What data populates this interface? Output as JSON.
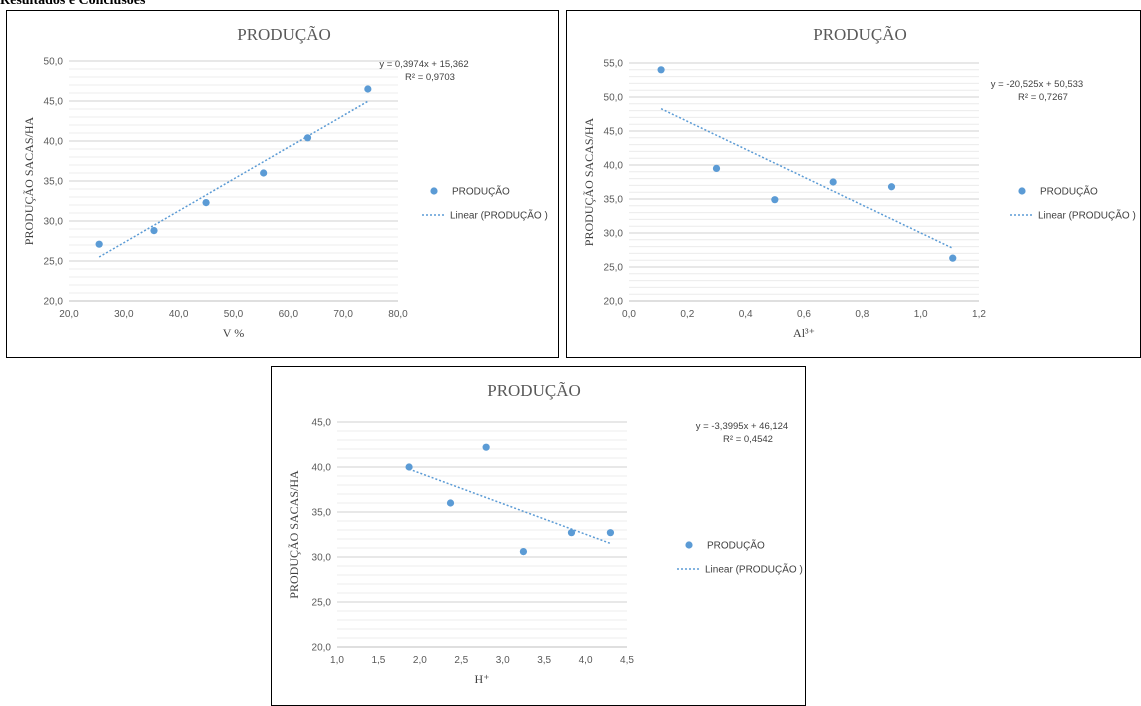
{
  "page": {
    "heading": "Resultados e Conclusões"
  },
  "chart_data": [
    {
      "type": "scatter",
      "title": "PRODUÇÃO",
      "xlabel": "V %",
      "ylabel": "PRODUÇÃO SACAS/HA",
      "xlim": [
        20,
        80
      ],
      "ylim": [
        20,
        50
      ],
      "xticks": [
        "20,0",
        "30,0",
        "40,0",
        "50,0",
        "60,0",
        "70,0",
        "80,0"
      ],
      "yticks": [
        "20,0",
        "25,0",
        "30,0",
        "35,0",
        "40,0",
        "45,0",
        "50,0"
      ],
      "series": [
        {
          "name": "PRODUÇÃO",
          "color": "#5b9bd5",
          "points": [
            [
              25.5,
              27.1
            ],
            [
              35.5,
              28.8
            ],
            [
              45,
              32.3
            ],
            [
              55.5,
              36.0
            ],
            [
              63.5,
              40.4
            ],
            [
              74.5,
              46.5
            ]
          ]
        }
      ],
      "trendline": {
        "name": "Linear (PRODUÇÃO )",
        "slope": 0.3974,
        "intercept": 15.362,
        "x_range": [
          25.5,
          74.5
        ]
      },
      "equation": "y = 0,3974x + 15,362",
      "r2": "R² = 0,9703",
      "grid": true,
      "legend_position": "right"
    },
    {
      "type": "scatter",
      "title": "PRODUÇÃO",
      "xlabel": "Al³⁺",
      "ylabel": "PRODUÇÃO SACAS/HA",
      "xlim": [
        0,
        1.2
      ],
      "ylim": [
        20,
        55
      ],
      "xticks": [
        "0,0",
        "0,2",
        "0,4",
        "0,6",
        "0,8",
        "1,0",
        "1,2"
      ],
      "yticks": [
        "20,0",
        "25,0",
        "30,0",
        "35,0",
        "40,0",
        "45,0",
        "50,0",
        "55,0"
      ],
      "series": [
        {
          "name": "PRODUÇÃO",
          "color": "#5b9bd5",
          "points": [
            [
              0.11,
              54.0
            ],
            [
              0.3,
              39.5
            ],
            [
              0.5,
              34.9
            ],
            [
              0.7,
              37.5
            ],
            [
              0.9,
              36.8
            ],
            [
              1.11,
              26.3
            ]
          ]
        }
      ],
      "trendline": {
        "name": "Linear (PRODUÇÃO )",
        "slope": -20.525,
        "intercept": 50.533,
        "x_range": [
          0.11,
          1.11
        ]
      },
      "equation": "y = -20,525x + 50,533",
      "r2": "R² = 0,7267",
      "grid": true,
      "legend_position": "right"
    },
    {
      "type": "scatter",
      "title": "PRODUÇÃO",
      "xlabel": "H⁺",
      "ylabel": "PRODUÇÃO SACAS/HA",
      "xlim": [
        1,
        4.5
      ],
      "ylim": [
        20,
        45
      ],
      "xticks": [
        "1,0",
        "1,5",
        "2,0",
        "2,5",
        "3,0",
        "3,5",
        "4,0",
        "4,5"
      ],
      "yticks": [
        "20,0",
        "25,0",
        "30,0",
        "35,0",
        "40,0",
        "45,0"
      ],
      "series": [
        {
          "name": "PRODUÇÃO",
          "color": "#5b9bd5",
          "points": [
            [
              1.87,
              40.0
            ],
            [
              2.37,
              36.0
            ],
            [
              2.8,
              42.2
            ],
            [
              3.25,
              30.6
            ],
            [
              3.83,
              32.7
            ],
            [
              4.3,
              32.7
            ]
          ]
        }
      ],
      "trendline": {
        "name": "Linear (PRODUÇÃO )",
        "slope": -3.3995,
        "intercept": 46.124,
        "x_range": [
          1.87,
          4.3
        ]
      },
      "equation": "y = -3,3995x + 46,124",
      "r2": "R² = 0,4542",
      "grid": true,
      "legend_position": "right"
    }
  ]
}
